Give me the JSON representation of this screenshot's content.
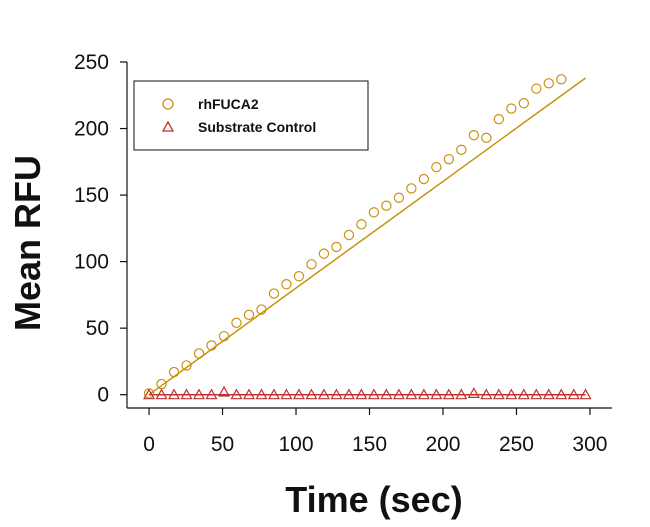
{
  "chart_data": {
    "type": "scatter",
    "title": "",
    "xlabel": "Time (sec)",
    "ylabel": "Mean RFU",
    "xlim": [
      -15,
      315
    ],
    "ylim": [
      -10,
      250
    ],
    "x_ticks": [
      0,
      50,
      100,
      150,
      200,
      250,
      300
    ],
    "y_ticks": [
      0,
      50,
      100,
      150,
      200,
      250
    ],
    "grid": false,
    "legend_position": "top-left",
    "series": [
      {
        "name": "rhFUCA2",
        "marker": "circle",
        "color": "#C8920F",
        "fit_line": {
          "x": [
            0,
            297
          ],
          "y": [
            0,
            238
          ]
        },
        "points": [
          [
            0,
            1
          ],
          [
            8.5,
            8
          ],
          [
            17,
            17
          ],
          [
            25.5,
            22
          ],
          [
            34,
            31
          ],
          [
            42.5,
            37
          ],
          [
            51,
            44
          ],
          [
            59.5,
            54
          ],
          [
            68,
            60
          ],
          [
            76.5,
            64
          ],
          [
            85,
            76
          ],
          [
            93.5,
            83
          ],
          [
            102,
            89
          ],
          [
            110.5,
            98
          ],
          [
            119,
            106
          ],
          [
            127.5,
            111
          ],
          [
            136,
            120
          ],
          [
            144.5,
            128
          ],
          [
            153,
            137
          ],
          [
            161.5,
            142
          ],
          [
            170,
            148
          ],
          [
            178.5,
            155
          ],
          [
            187,
            162
          ],
          [
            195.5,
            171
          ],
          [
            204,
            177
          ],
          [
            212.5,
            184
          ],
          [
            221,
            195
          ],
          [
            229.5,
            193
          ],
          [
            238,
            207
          ],
          [
            246.5,
            215
          ],
          [
            255,
            219
          ],
          [
            263.5,
            230
          ],
          [
            272,
            234
          ],
          [
            280.5,
            237
          ]
        ]
      },
      {
        "name": "Substrate Control",
        "marker": "triangle",
        "color": "#C03030",
        "fit_line": {
          "x": [
            0,
            297
          ],
          "y": [
            0,
            0
          ]
        },
        "points": [
          [
            0,
            0
          ],
          [
            8.5,
            0
          ],
          [
            17,
            0
          ],
          [
            25.5,
            0
          ],
          [
            34,
            0
          ],
          [
            42.5,
            0
          ],
          [
            51,
            2
          ],
          [
            59.5,
            0
          ],
          [
            68,
            0
          ],
          [
            76.5,
            0
          ],
          [
            85,
            0
          ],
          [
            93.5,
            0
          ],
          [
            102,
            0
          ],
          [
            110.5,
            0
          ],
          [
            119,
            0
          ],
          [
            127.5,
            0
          ],
          [
            136,
            0
          ],
          [
            144.5,
            0
          ],
          [
            153,
            0
          ],
          [
            161.5,
            0
          ],
          [
            170,
            0
          ],
          [
            178.5,
            0
          ],
          [
            187,
            0
          ],
          [
            195.5,
            0
          ],
          [
            204,
            0
          ],
          [
            212.5,
            0
          ],
          [
            221,
            1
          ],
          [
            229.5,
            0
          ],
          [
            238,
            0
          ],
          [
            246.5,
            0
          ],
          [
            255,
            0
          ],
          [
            263.5,
            0
          ],
          [
            272,
            0
          ],
          [
            280.5,
            0
          ],
          [
            289,
            0
          ],
          [
            297,
            0
          ]
        ]
      }
    ]
  }
}
